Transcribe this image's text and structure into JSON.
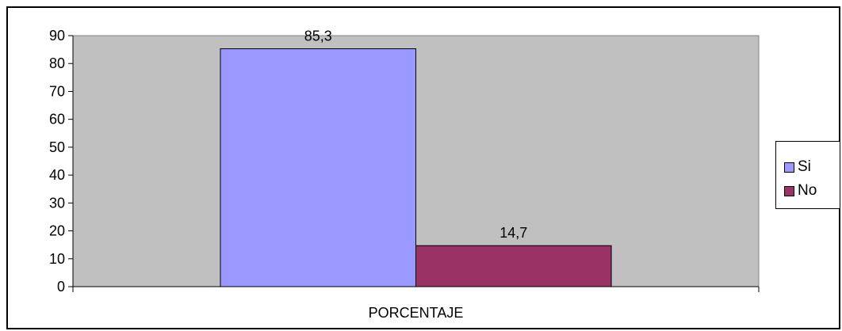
{
  "chart_data": {
    "type": "bar",
    "categories": [
      "PORCENTAJE"
    ],
    "series": [
      {
        "name": "Si",
        "values": [
          85.3
        ],
        "label": "85,3",
        "color": "#9999ff"
      },
      {
        "name": "No",
        "values": [
          14.7
        ],
        "label": "14,7",
        "color": "#993366"
      }
    ],
    "ylim": [
      0,
      90
    ],
    "yticks": [
      "0",
      "10",
      "20",
      "30",
      "40",
      "50",
      "60",
      "70",
      "80",
      "90"
    ],
    "grid": false,
    "legend": "right",
    "plot_background": "#c0c0c0"
  }
}
